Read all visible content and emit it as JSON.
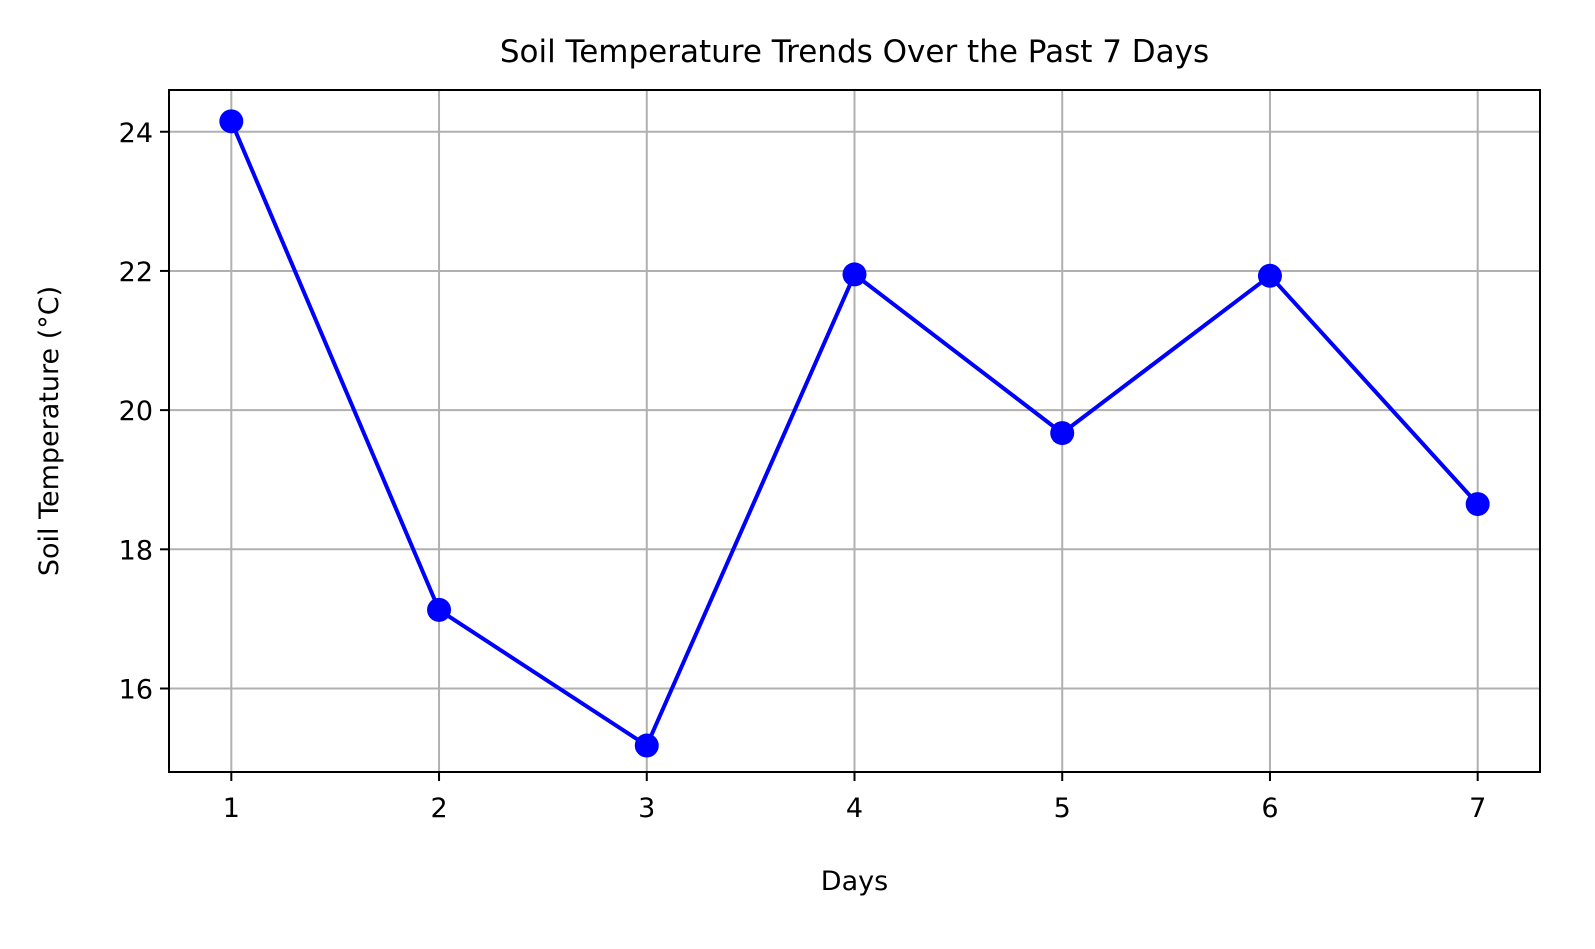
{
  "chart_data": {
    "type": "line",
    "title": "Soil Temperature Trends Over the Past 7 Days",
    "xlabel": "Days",
    "ylabel": "Soil Temperature (°C)",
    "x": [
      1,
      2,
      3,
      4,
      5,
      6,
      7
    ],
    "series": [
      {
        "values": [
          24.15,
          17.13,
          15.18,
          21.95,
          19.67,
          21.93,
          18.65
        ],
        "color": "#0000ff",
        "marker": "circle"
      }
    ],
    "xlim": [
      0.7,
      7.3
    ],
    "ylim": [
      14.8,
      24.6
    ],
    "xticks": [
      "1",
      "2",
      "3",
      "4",
      "5",
      "6",
      "7"
    ],
    "yticks": [
      "16",
      "18",
      "20",
      "22",
      "24"
    ],
    "grid": true,
    "grid_color": "#b0b0b0",
    "axes_color": "#000000"
  }
}
